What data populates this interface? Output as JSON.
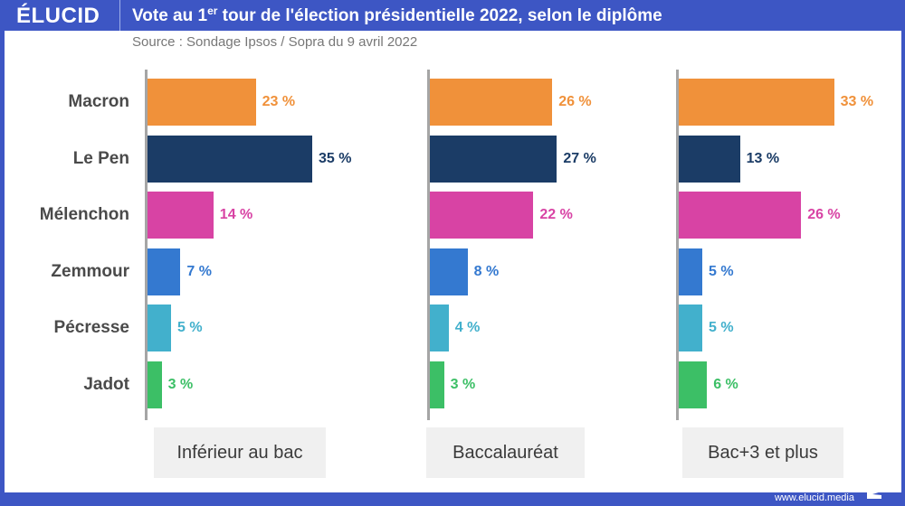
{
  "header": {
    "logo": "ÉLUCID",
    "title_pre": "Vote au 1",
    "title_sup": "er",
    "title_post": " tour de l'élection présidentielle 2022, selon le diplôme",
    "source": "Source : Sondage Ipsos / Sopra du 9 avril 2022"
  },
  "footer": {
    "url": "www.elucid.media"
  },
  "colors": {
    "brand_blue": "#3d56c4",
    "Macron": "#f0913a",
    "Le Pen": "#1b3c66",
    "Mélenchon": "#d843a4",
    "Zemmour": "#3479d0",
    "Pécresse": "#42b0cc",
    "Jadot": "#3cbf66"
  },
  "chart_data": {
    "type": "bar",
    "orientation": "horizontal",
    "title": "Vote au 1er tour de l'élection présidentielle 2022, selon le diplôme",
    "subtitle": "Source : Sondage Ipsos / Sopra du 9 avril 2022",
    "unit": "%",
    "categories": [
      "Macron",
      "Le Pen",
      "Mélenchon",
      "Zemmour",
      "Pécresse",
      "Jadot"
    ],
    "series": [
      {
        "name": "Inférieur au bac",
        "values": [
          23,
          35,
          14,
          7,
          5,
          3
        ],
        "labels": [
          "23 %",
          "35 %",
          "14 %",
          "7 %",
          "5 %",
          "3 %"
        ]
      },
      {
        "name": "Baccalauréat",
        "values": [
          26,
          27,
          22,
          8,
          4,
          3
        ],
        "labels": [
          "26 %",
          "27 %",
          "22 %",
          "8 %",
          "4 %",
          "3 %"
        ]
      },
      {
        "name": "Bac+3 et plus",
        "values": [
          33,
          13,
          26,
          5,
          5,
          6
        ],
        "labels": [
          "33 %",
          "13 %",
          "26 %",
          "5 %",
          "5 %",
          "6 %"
        ]
      }
    ],
    "xlim": [
      0,
      35
    ],
    "grid": false,
    "legend": "none"
  }
}
